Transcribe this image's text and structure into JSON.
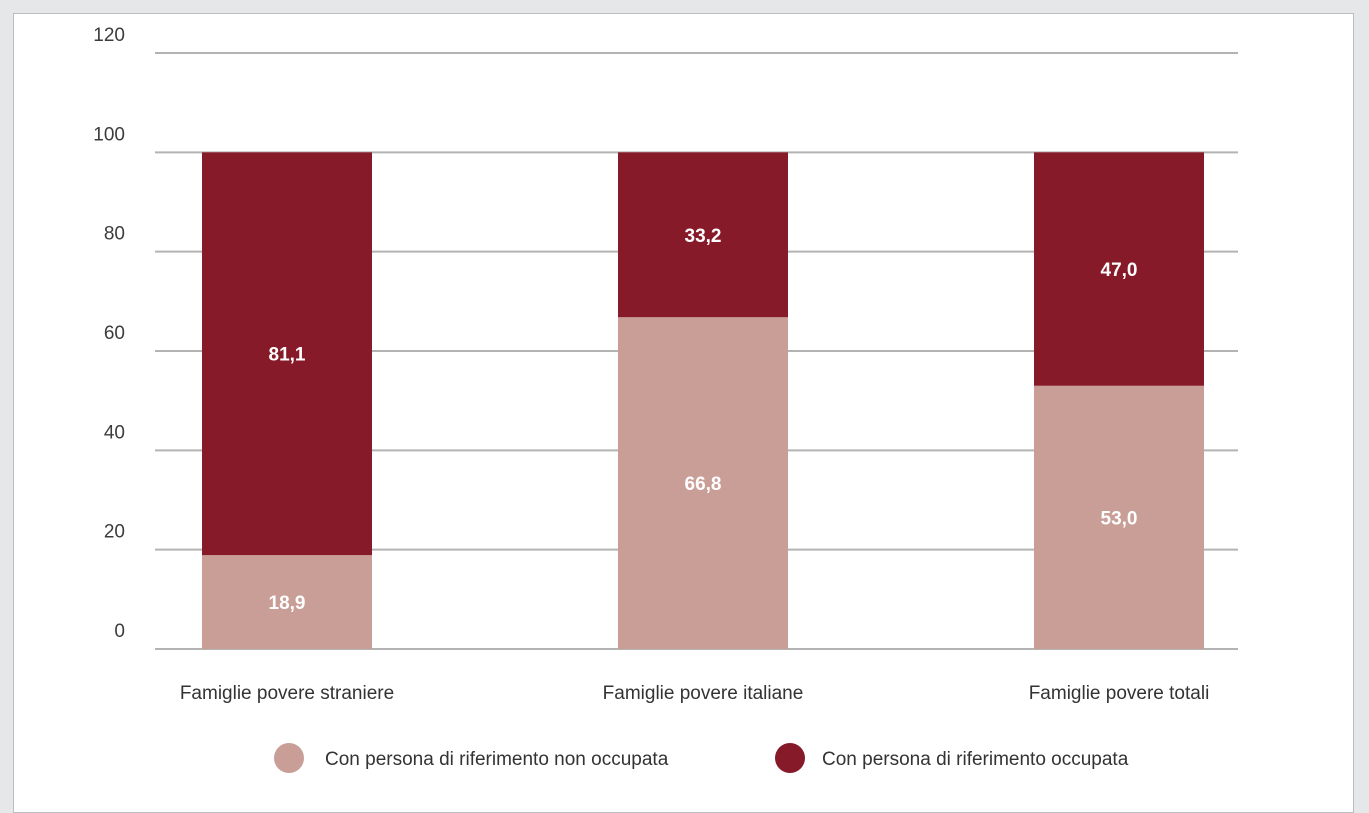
{
  "chart_data": {
    "type": "bar",
    "stacked": true,
    "categories": [
      "Famiglie povere straniere",
      "Famiglie povere italiane",
      "Famiglie povere totali"
    ],
    "series": [
      {
        "name": "Con persona di riferimento non occupata",
        "values": [
          18.9,
          66.8,
          53.0
        ],
        "labels": [
          "18,9",
          "66,8",
          "53,0"
        ],
        "color": "#c89e96"
      },
      {
        "name": "Con persona di riferimento occupata",
        "values": [
          81.1,
          33.2,
          47.0
        ],
        "labels": [
          "81,1",
          "33,2",
          "47,0"
        ],
        "color": "#861a29"
      }
    ],
    "yticks": [
      "0",
      "20",
      "40",
      "60",
      "80",
      "100",
      "120"
    ],
    "ylim": [
      0,
      120
    ],
    "grid": true,
    "legend": "bottom"
  }
}
